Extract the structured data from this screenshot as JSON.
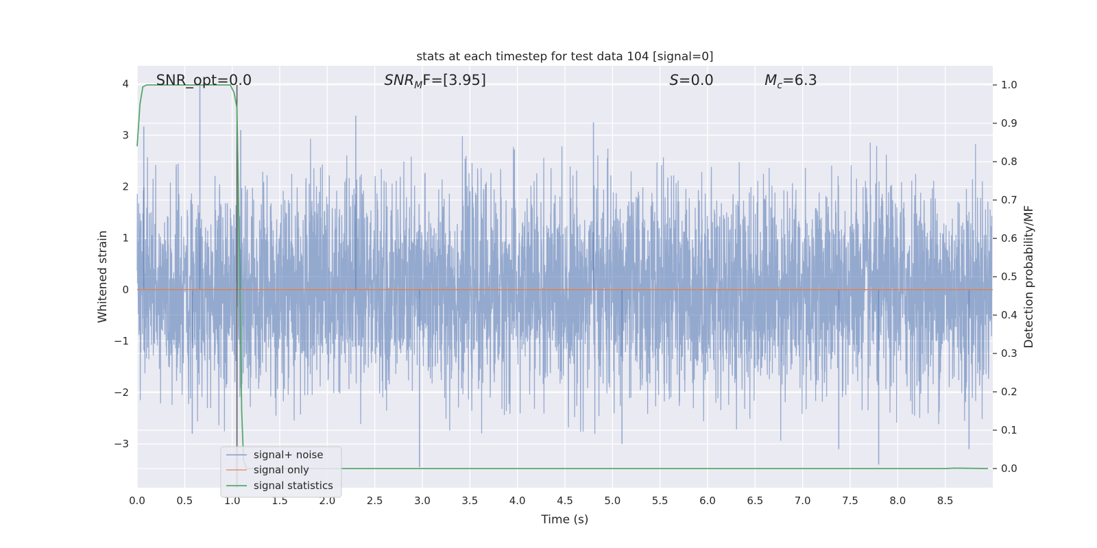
{
  "chart_data": {
    "type": "line",
    "title": "stats at each timestep for test data 104 [signal=0]",
    "xlabel": "Time (s)",
    "ylabel": "Whitened strain",
    "y2label": "Detection probability/MF",
    "xlim": [
      0,
      9.0
    ],
    "ylim": [
      -3.85,
      4.35
    ],
    "y2lim": [
      -0.05,
      1.05
    ],
    "xticks": [
      0.0,
      0.5,
      1.0,
      1.5,
      2.0,
      2.5,
      3.0,
      3.5,
      4.0,
      4.5,
      5.0,
      5.5,
      6.0,
      6.5,
      7.0,
      7.5,
      8.0,
      8.5
    ],
    "xtick_labels": [
      "0.0",
      "0.5",
      "1.0",
      "1.5",
      "2.0",
      "2.5",
      "3.0",
      "3.5",
      "4.0",
      "4.5",
      "5.0",
      "5.5",
      "6.0",
      "6.5",
      "7.0",
      "7.5",
      "8.0",
      "8.5"
    ],
    "yticks": [
      -3,
      -2,
      -1,
      0,
      1,
      2,
      3,
      4
    ],
    "ytick_labels": [
      "−3",
      "−2",
      "−1",
      "0",
      "1",
      "2",
      "3",
      "4"
    ],
    "y2ticks": [
      0.0,
      0.1,
      0.2,
      0.3,
      0.4,
      0.5,
      0.6,
      0.7,
      0.8,
      0.9,
      1.0
    ],
    "y2tick_labels": [
      "0.0",
      "0.1",
      "0.2",
      "0.3",
      "0.4",
      "0.5",
      "0.6",
      "0.7",
      "0.8",
      "0.9",
      "1.0"
    ],
    "grid": true,
    "legend_position": "bottom-left",
    "series": [
      {
        "name": "signal+ noise",
        "axis": "left",
        "color": "#4c72b0",
        "description": "Gaussian whitened noise, roughly within −3.5 to 4",
        "noise_std": 1.0,
        "peaks": [
          [
            0.07,
            3.17
          ],
          [
            0.66,
            4.0
          ],
          [
            1.09,
            3.1
          ],
          [
            2.3,
            3.38
          ],
          [
            4.8,
            3.25
          ],
          [
            2.97,
            -3.45
          ],
          [
            7.8,
            -3.4
          ],
          [
            7.38,
            -3.1
          ],
          [
            0.58,
            -2.8
          ],
          [
            5.1,
            -3.0
          ],
          [
            8.75,
            -3.1
          ]
        ]
      },
      {
        "name": "signal only",
        "axis": "left",
        "color": "#dd8452",
        "x": [
          0.0,
          9.0
        ],
        "y": [
          0.0,
          0.0
        ]
      },
      {
        "name": "signal statistics",
        "axis": "right",
        "color": "#55a868",
        "x": [
          0.0,
          0.03,
          0.06,
          0.1,
          0.2,
          0.5,
          0.8,
          0.98,
          1.02,
          1.05,
          1.08,
          1.1,
          1.12,
          1.15,
          1.2,
          1.3,
          2.0,
          5.0,
          8.5,
          8.6,
          8.95
        ],
        "y": [
          0.84,
          0.95,
          0.995,
          1.0,
          1.0,
          1.0,
          1.0,
          1.0,
          0.98,
          0.94,
          0.5,
          0.15,
          0.02,
          0.0,
          0.0,
          0.0,
          0.0,
          0.0,
          0.0,
          0.001,
          0.0
        ]
      }
    ],
    "vline": {
      "x": 1.05,
      "color": "#555555"
    },
    "annotations": [
      {
        "text": "SNR_opt=0.0",
        "x": 0.2
      },
      {
        "text_main": "SNR",
        "text_sub": "M",
        "text_rest": "F=[3.95]",
        "x": 2.6
      },
      {
        "text_main": "S",
        "text_rest": "=0.0",
        "x": 5.6
      },
      {
        "text_main": "M",
        "text_sub": "c",
        "text_rest": "=6.3",
        "x": 6.6
      }
    ]
  }
}
